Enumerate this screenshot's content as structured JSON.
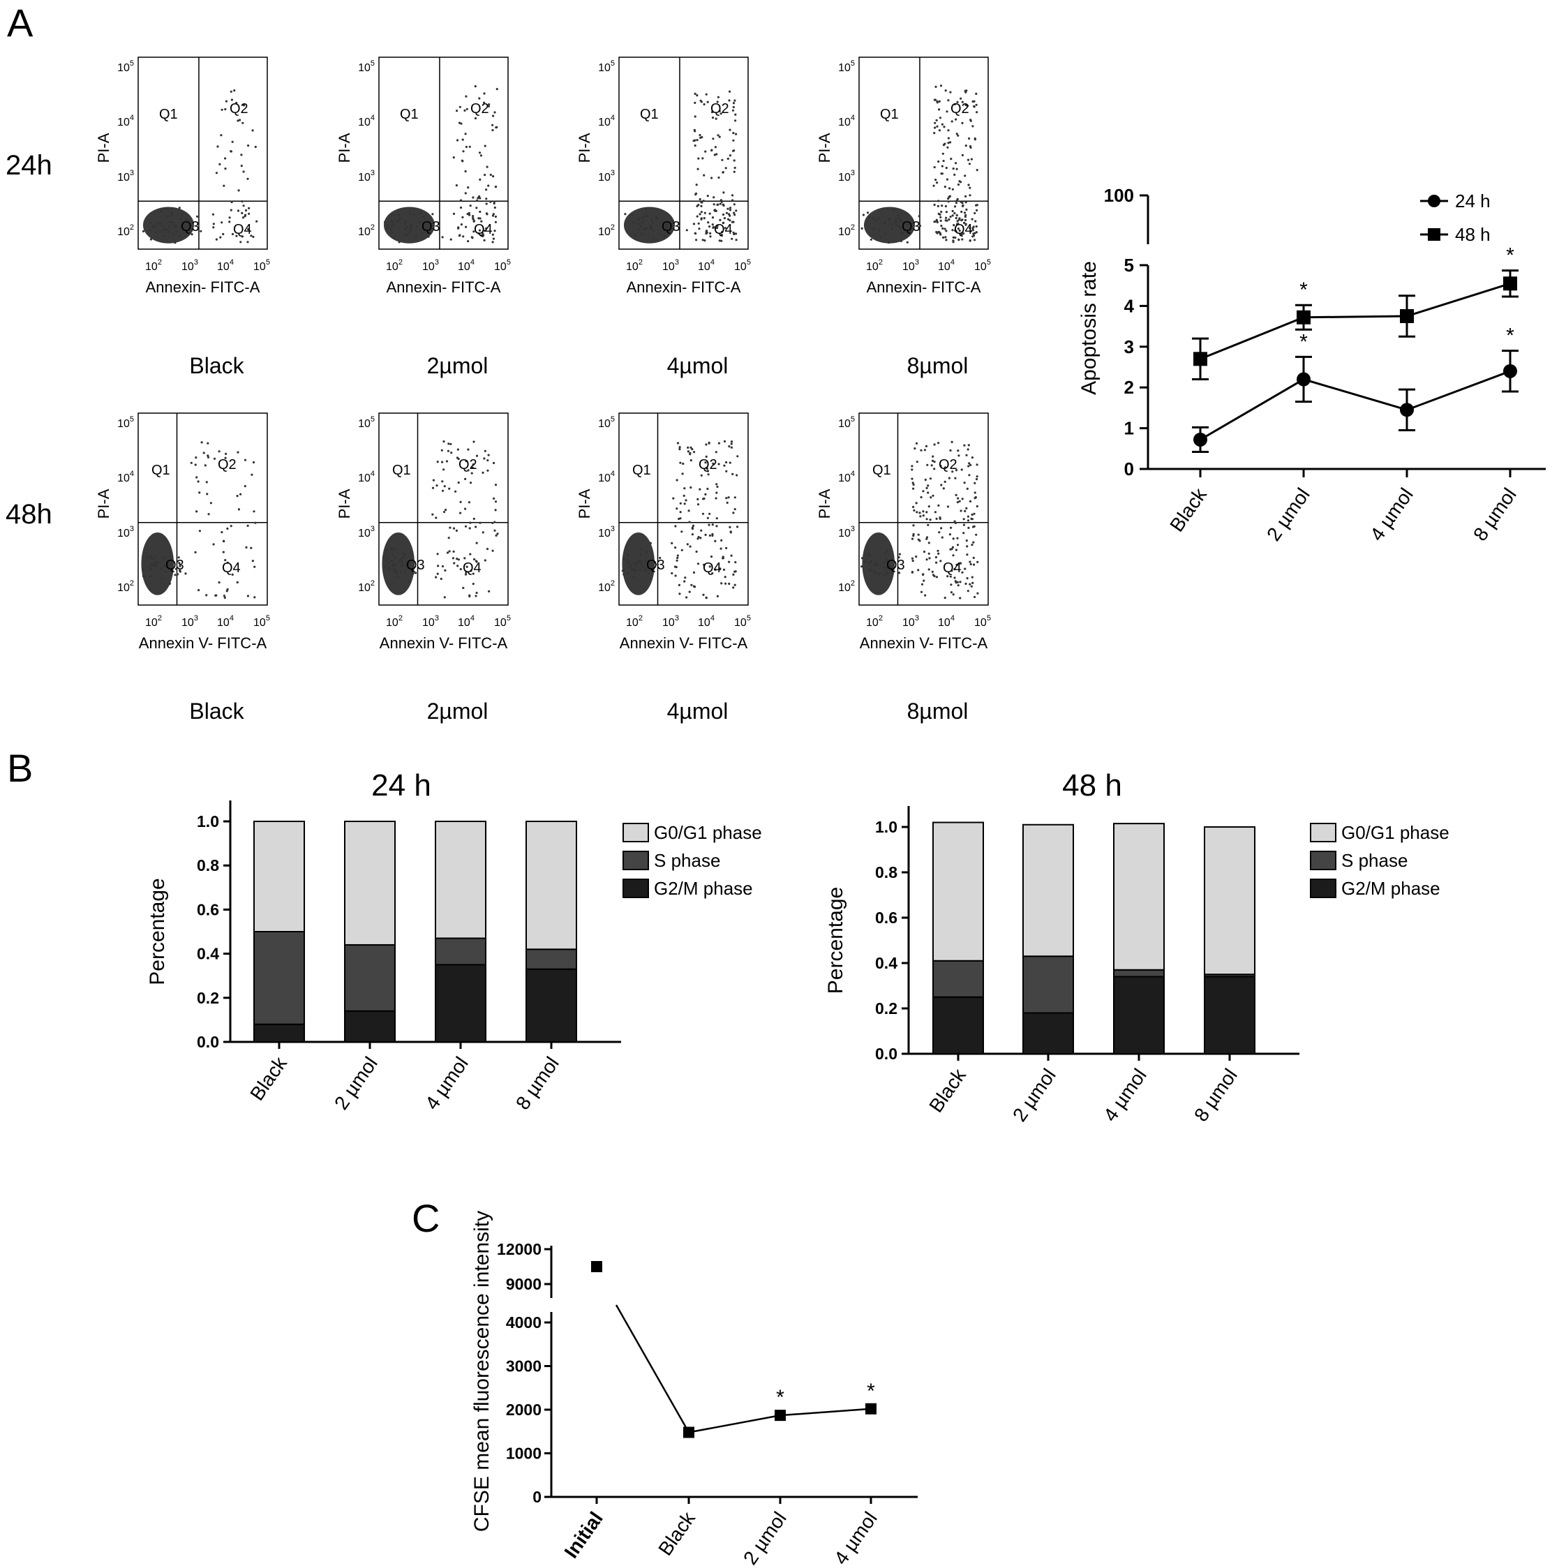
{
  "panel_labels": {
    "a": "A",
    "b": "B",
    "c": "C"
  },
  "flow": {
    "row_labels": [
      "24h",
      "48h"
    ],
    "quadrant_labels": [
      "Q1",
      "Q2",
      "Q3",
      "Q4"
    ],
    "y_label": "PI-A",
    "x_label_row1": "Annexin- FITC-A",
    "x_label_row2": "Annexin V- FITC-A",
    "tick_base": "10",
    "tick_exponents": [
      "2",
      "3",
      "4",
      "5"
    ],
    "conditions": [
      "Black",
      "2µmol",
      "4µmol",
      "8µmol"
    ],
    "quadrant_percent_q2_24h": [],
    "dot_color": "#333333"
  },
  "chart_data": [
    {
      "id": "apoptosis",
      "type": "line",
      "title": "",
      "xlabel": "",
      "ylabel": "Apoptosis rate",
      "categories": [
        "Black",
        "2 µmol",
        "4 µmol",
        "8 µmol"
      ],
      "ylim": [
        0,
        5
      ],
      "y_break_top": 100,
      "yticks": [
        "0",
        "1",
        "2",
        "3",
        "4",
        "5",
        "100"
      ],
      "series": [
        {
          "name": "24 h",
          "marker": "circle",
          "values": [
            0.72,
            2.2,
            1.45,
            2.4
          ],
          "errors": [
            0.3,
            0.55,
            0.5,
            0.5
          ],
          "significant": [
            false,
            true,
            false,
            true
          ]
        },
        {
          "name": "48 h",
          "marker": "square",
          "values": [
            2.7,
            3.72,
            3.75,
            4.55
          ],
          "errors": [
            0.5,
            0.3,
            0.5,
            0.32
          ],
          "significant": [
            false,
            true,
            false,
            true
          ]
        }
      ],
      "significance_marker": "*",
      "legend": "top-right"
    },
    {
      "id": "cycle24",
      "type": "bar",
      "stacked": true,
      "title": "24 h",
      "xlabel": "",
      "ylabel": "Percentage",
      "categories": [
        "Black",
        "2 µmol",
        "4 µmol",
        "8 µmol"
      ],
      "ylim": [
        0,
        1.0
      ],
      "yticks": [
        "0.0",
        "0.2",
        "0.4",
        "0.6",
        "0.8",
        "1.0"
      ],
      "series": [
        {
          "name": "G2/M phase",
          "color": "#1c1c1c",
          "values": [
            0.08,
            0.14,
            0.35,
            0.33
          ]
        },
        {
          "name": "S phase",
          "color": "#444444",
          "values": [
            0.42,
            0.3,
            0.12,
            0.09
          ]
        },
        {
          "name": "G0/G1 phase",
          "color": "#d7d7d7",
          "values": [
            0.5,
            0.56,
            0.53,
            0.58
          ]
        }
      ],
      "legend": "right"
    },
    {
      "id": "cycle48",
      "type": "bar",
      "stacked": true,
      "title": "48 h",
      "xlabel": "",
      "ylabel": "Percentage",
      "categories": [
        "Black",
        "2 µmol",
        "4 µmol",
        "8 µmol"
      ],
      "ylim": [
        0,
        1.0
      ],
      "yticks": [
        "0.0",
        "0.2",
        "0.4",
        "0.6",
        "0.8",
        "1.0"
      ],
      "series": [
        {
          "name": "G2/M phase",
          "color": "#1c1c1c",
          "values": [
            0.25,
            0.18,
            0.34,
            0.34
          ]
        },
        {
          "name": "S phase",
          "color": "#444444",
          "values": [
            0.16,
            0.25,
            0.03,
            0.01
          ]
        },
        {
          "name": "G0/G1 phase",
          "color": "#d7d7d7",
          "values": [
            0.61,
            0.58,
            0.645,
            0.65
          ]
        }
      ],
      "legend": "right"
    },
    {
      "id": "cfse",
      "type": "line",
      "title": "",
      "xlabel": "",
      "ylabel": "CFSE mean fluorescence intensity",
      "categories": [
        "Initial",
        "Black",
        "2 µmol",
        "4 µmol"
      ],
      "yticks_lower": [
        "0",
        "1000",
        "2000",
        "3000",
        "4000"
      ],
      "yticks_upper": [
        "9000",
        "12000"
      ],
      "ylim_lower": [
        0,
        4000
      ],
      "ylim_upper": [
        8000,
        12000
      ],
      "series": [
        {
          "name": "",
          "marker": "square",
          "values": [
            10500,
            1480,
            1870,
            2020
          ],
          "significant": [
            false,
            false,
            true,
            true
          ]
        }
      ],
      "significance_marker": "*"
    }
  ]
}
